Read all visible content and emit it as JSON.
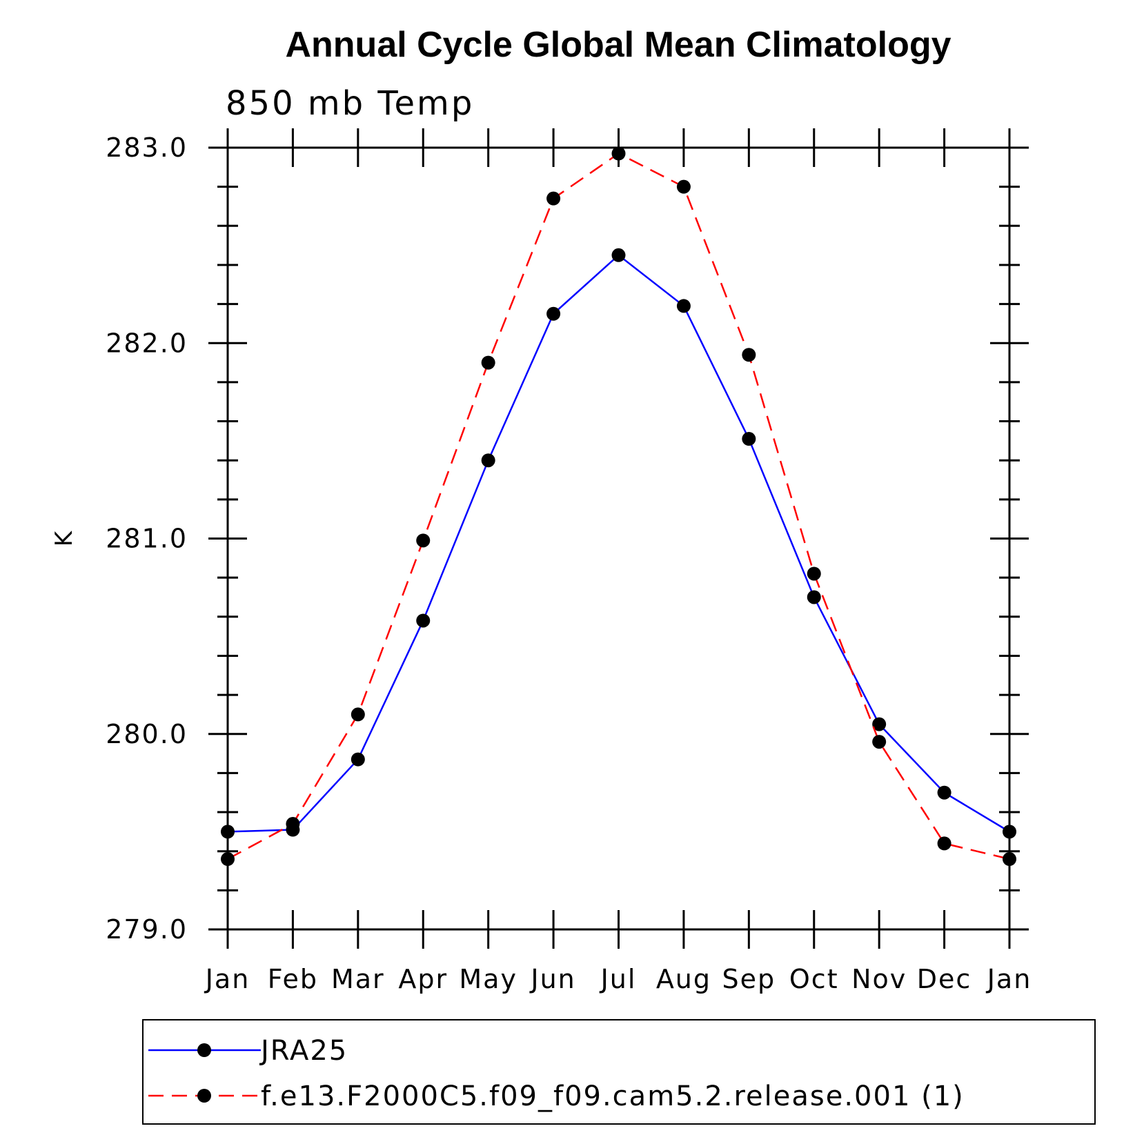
{
  "chart_data": {
    "type": "line",
    "title": "Annual Cycle Global Mean Climatology",
    "subtitle": "850 mb Temp",
    "ylabel": "K",
    "xlabel": "",
    "categories": [
      "Jan",
      "Feb",
      "Mar",
      "Apr",
      "May",
      "Jun",
      "Jul",
      "Aug",
      "Sep",
      "Oct",
      "Nov",
      "Dec",
      "Jan"
    ],
    "ylim": [
      279.0,
      283.0
    ],
    "yticks": [
      279.0,
      280.0,
      281.0,
      282.0,
      283.0
    ],
    "ytick_labels": [
      "279.0",
      "280.0",
      "281.0",
      "282.0",
      "283.0"
    ],
    "grid": false,
    "legend_position": "bottom",
    "series": [
      {
        "name": "JRA25",
        "color": "#0000ff",
        "line_style": "solid",
        "marker": "filled-circle",
        "values": [
          279.5,
          279.51,
          279.87,
          280.58,
          281.4,
          282.15,
          282.45,
          282.19,
          281.51,
          280.7,
          280.05,
          279.7,
          279.5
        ]
      },
      {
        "name": "f.e13.F2000C5.f09_f09.cam5.2.release.001 (1)",
        "color": "#ff0000",
        "line_style": "dashed",
        "marker": "filled-circle",
        "values": [
          279.36,
          279.54,
          280.1,
          280.99,
          281.9,
          282.74,
          282.97,
          282.8,
          281.94,
          280.82,
          279.96,
          279.44,
          279.36
        ]
      }
    ]
  }
}
